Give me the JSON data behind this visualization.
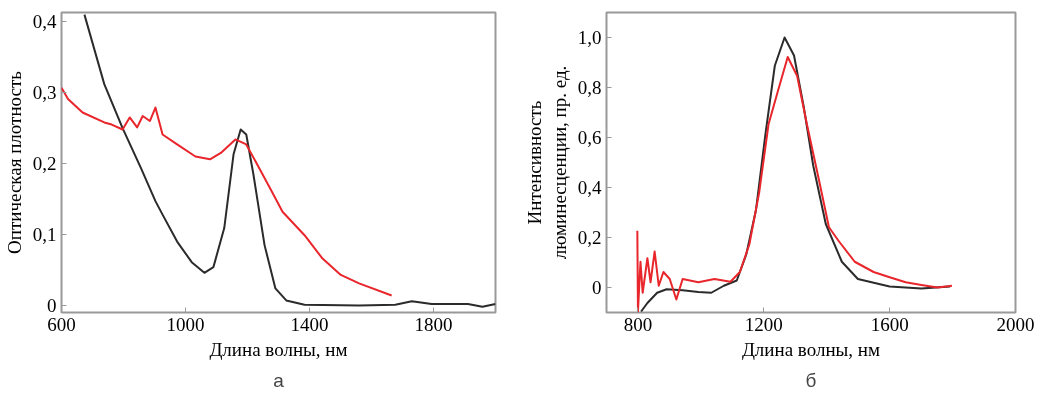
{
  "chart_data": [
    {
      "type": "line",
      "xlabel": "Длина волны, нм",
      "ylabel": "Оптическая плотность",
      "annotations": [
        "а"
      ],
      "xlim": [
        600,
        2000
      ],
      "ylim": [
        -0.01,
        0.413
      ],
      "xticks": [
        600,
        1000,
        1400,
        1800
      ],
      "yticks": [
        0,
        {
          "value": 0.1,
          "label": "0,1"
        },
        {
          "value": 0.2,
          "label": "0,2"
        },
        {
          "value": 0.3,
          "label": "0,3"
        },
        {
          "value": 0.4,
          "label": "0,4"
        }
      ],
      "grid": false,
      "line_style": "solid",
      "series": [
        {
          "color": "#2b2b2b",
          "x": [
            674,
            738,
            797,
            856,
            903,
            926,
            973,
            1020,
            1061,
            1090,
            1125,
            1155,
            1178,
            1196,
            1219,
            1255,
            1290,
            1325,
            1384,
            1560,
            1677,
            1730,
            1794,
            1911,
            1958,
            2000
          ],
          "values": [
            0.41,
            0.312,
            0.25,
            0.194,
            0.147,
            0.128,
            0.09,
            0.061,
            0.046,
            0.054,
            0.109,
            0.213,
            0.248,
            0.241,
            0.185,
            0.085,
            0.024,
            0.007,
            0.001,
            0,
            0.001,
            0.006,
            0.002,
            0.002,
            -0.002,
            0.002
          ]
        },
        {
          "color": "#e8262b",
          "x": [
            600,
            621,
            668,
            738,
            762,
            797,
            820,
            844,
            862,
            885,
            903,
            926,
            973,
            1032,
            1079,
            1114,
            1161,
            1196,
            1231,
            1278,
            1313,
            1384,
            1442,
            1501,
            1560,
            1665
          ],
          "values": [
            0.307,
            0.291,
            0.272,
            0.258,
            0.255,
            0.248,
            0.265,
            0.251,
            0.267,
            0.26,
            0.279,
            0.241,
            0.227,
            0.21,
            0.206,
            0.215,
            0.234,
            0.227,
            0.199,
            0.161,
            0.132,
            0.099,
            0.066,
            0.043,
            0.031,
            0.014
          ]
        }
      ]
    },
    {
      "type": "line",
      "xlabel": "Длина волны, нм",
      "ylabel": "Интенсивность\nлюминесценции, пр. ед.",
      "annotations": [
        "б"
      ],
      "xlim": [
        700,
        2000
      ],
      "ylim": [
        -0.1,
        1.1
      ],
      "xticks": [
        800,
        1200,
        1600,
        2000
      ],
      "yticks": [
        0,
        {
          "value": 0.2,
          "label": "0,2"
        },
        {
          "value": 0.4,
          "label": "0,4"
        },
        {
          "value": 0.6,
          "label": "0,6"
        },
        {
          "value": 0.8,
          "label": "0,8"
        },
        {
          "value": 1.0,
          "label": "1,0"
        }
      ],
      "grid": false,
      "line_style": "solid",
      "series": [
        {
          "color": "#2b2b2b",
          "x": [
            810,
            830,
            861,
            891,
            942,
            992,
            1033,
            1073,
            1114,
            1144,
            1175,
            1205,
            1235,
            1266,
            1296,
            1327,
            1357,
            1397,
            1448,
            1499,
            1600,
            1701,
            1792
          ],
          "values": [
            -0.096,
            -0.062,
            -0.021,
            -0.007,
            -0.011,
            -0.018,
            -0.021,
            0.007,
            0.028,
            0.131,
            0.309,
            0.612,
            0.887,
            1.0,
            0.928,
            0.722,
            0.488,
            0.254,
            0.103,
            0.034,
            0.004,
            -0.004,
            0.004
          ]
        },
        {
          "color": "#e8262b",
          "x": [
            798,
            800,
            808,
            815,
            830,
            840,
            853,
            866,
            881,
            901,
            922,
            942,
            992,
            1043,
            1094,
            1124,
            1154,
            1185,
            1215,
            1246,
            1276,
            1306,
            1337,
            1377,
            1407,
            1438,
            1489,
            1549,
            1600,
            1651,
            1701,
            1752,
            1798
          ],
          "values": [
            0.227,
            -0.096,
            0.103,
            -0.021,
            0.117,
            0.021,
            0.144,
            0.007,
            0.062,
            0.034,
            -0.048,
            0.034,
            0.021,
            0.034,
            0.023,
            0.062,
            0.172,
            0.378,
            0.653,
            0.791,
            0.922,
            0.846,
            0.653,
            0.42,
            0.241,
            0.186,
            0.103,
            0.062,
            0.041,
            0.021,
            0.01,
            0,
            0.007
          ]
        }
      ]
    }
  ]
}
